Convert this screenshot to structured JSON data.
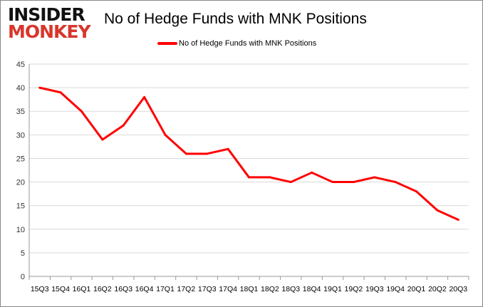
{
  "logo": {
    "line1": "INSIDER",
    "line2": "MONKEY"
  },
  "chart_data": {
    "type": "line",
    "title": "No of Hedge Funds with MNK Positions",
    "categories": [
      "15Q3",
      "15Q4",
      "16Q1",
      "16Q2",
      "16Q3",
      "16Q4",
      "17Q1",
      "17Q2",
      "17Q3",
      "17Q4",
      "18Q1",
      "18Q2",
      "18Q3",
      "18Q4",
      "19Q1",
      "19Q2",
      "19Q3",
      "19Q4",
      "20Q1",
      "20Q2",
      "20Q3"
    ],
    "series": [
      {
        "name": "No of Hedge Funds with MNK Positions",
        "color": "#ff0000",
        "values": [
          40,
          39,
          35,
          29,
          32,
          38,
          30,
          26,
          26,
          27,
          21,
          21,
          20,
          22,
          20,
          20,
          21,
          20,
          18,
          14,
          12
        ]
      }
    ],
    "ylim": [
      0,
      45
    ],
    "yticks": [
      0,
      5,
      10,
      15,
      20,
      25,
      30,
      35,
      40,
      45
    ],
    "grid": true,
    "legend": "top"
  }
}
